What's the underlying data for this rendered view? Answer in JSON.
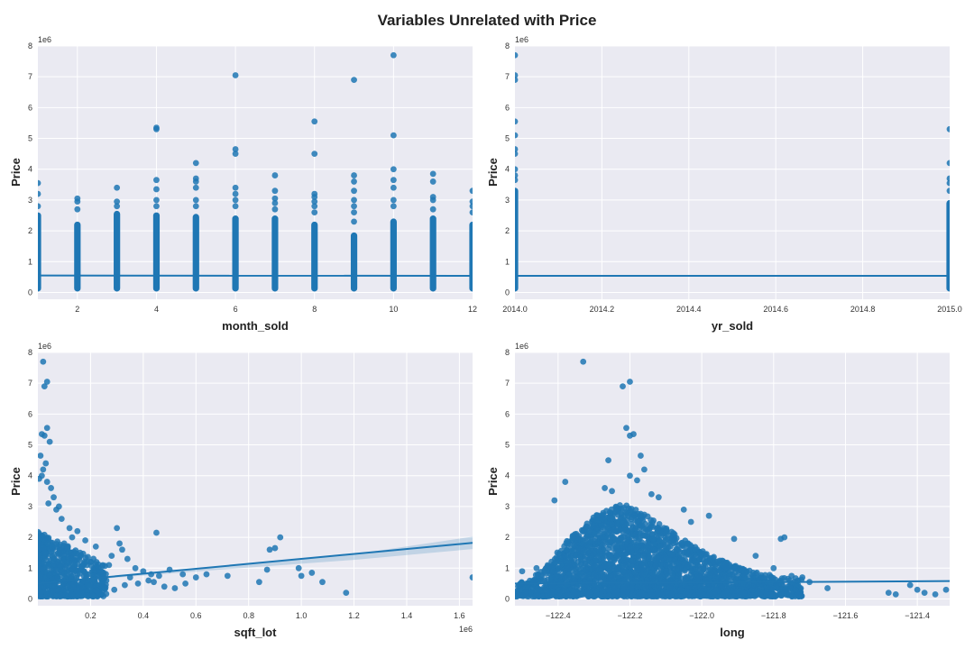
{
  "figure": {
    "title": "Variables Unrelated with Price"
  },
  "colors": {
    "point": "#1f77b4",
    "line": "#1f77b4",
    "panel_bg": "#eaeaf2",
    "grid": "#ffffff"
  },
  "chart_data": [
    {
      "type": "scatter",
      "xlabel": "month_sold",
      "ylabel": "Price",
      "y_offset_label": "1e6",
      "x_offset_label": "",
      "xlim": [
        1,
        12
      ],
      "ylim": [
        -0.22,
        8.0
      ],
      "xticks": [
        2,
        4,
        6,
        8,
        10,
        12
      ],
      "xtick_labels": [
        "2",
        "4",
        "6",
        "8",
        "10",
        "12"
      ],
      "yticks": [
        0,
        1,
        2,
        3,
        4,
        5,
        6,
        7,
        8
      ],
      "ytick_labels": [
        "0",
        "1",
        "2",
        "3",
        "4",
        "5",
        "6",
        "7",
        "8"
      ],
      "grid": true,
      "columns": [
        {
          "x": 1,
          "max": 2.6
        },
        {
          "x": 2,
          "max": 2.3
        },
        {
          "x": 3,
          "max": 2.65
        },
        {
          "x": 4,
          "max": 2.6
        },
        {
          "x": 5,
          "max": 2.55
        },
        {
          "x": 6,
          "max": 2.5
        },
        {
          "x": 7,
          "max": 2.5
        },
        {
          "x": 8,
          "max": 2.3
        },
        {
          "x": 9,
          "max": 1.95
        },
        {
          "x": 10,
          "max": 2.4
        },
        {
          "x": 11,
          "max": 2.5
        },
        {
          "x": 12,
          "max": 2.3
        }
      ],
      "outliers": [
        [
          1,
          3.55
        ],
        [
          1,
          3.2
        ],
        [
          1,
          2.8
        ],
        [
          2,
          3.05
        ],
        [
          2,
          2.95
        ],
        [
          2,
          2.7
        ],
        [
          3,
          3.4
        ],
        [
          3,
          2.95
        ],
        [
          3,
          2.8
        ],
        [
          4,
          5.3
        ],
        [
          4,
          5.35
        ],
        [
          4,
          3.65
        ],
        [
          4,
          3.35
        ],
        [
          4,
          3.0
        ],
        [
          4,
          2.8
        ],
        [
          5,
          4.2
        ],
        [
          5,
          3.7
        ],
        [
          5,
          3.6
        ],
        [
          5,
          3.4
        ],
        [
          5,
          3.0
        ],
        [
          5,
          2.8
        ],
        [
          6,
          7.05
        ],
        [
          6,
          4.65
        ],
        [
          6,
          4.5
        ],
        [
          6,
          3.4
        ],
        [
          6,
          3.2
        ],
        [
          6,
          3.0
        ],
        [
          6,
          2.8
        ],
        [
          7,
          3.8
        ],
        [
          7,
          3.3
        ],
        [
          7,
          3.05
        ],
        [
          7,
          2.9
        ],
        [
          7,
          2.7
        ],
        [
          8,
          5.55
        ],
        [
          8,
          4.5
        ],
        [
          8,
          3.2
        ],
        [
          8,
          3.1
        ],
        [
          8,
          2.95
        ],
        [
          8,
          2.8
        ],
        [
          8,
          2.6
        ],
        [
          9,
          6.9
        ],
        [
          9,
          3.8
        ],
        [
          9,
          3.6
        ],
        [
          9,
          3.3
        ],
        [
          9,
          3.0
        ],
        [
          9,
          2.8
        ],
        [
          9,
          2.6
        ],
        [
          9,
          2.3
        ],
        [
          10,
          7.7
        ],
        [
          10,
          5.1
        ],
        [
          10,
          4.0
        ],
        [
          10,
          3.65
        ],
        [
          10,
          3.4
        ],
        [
          10,
          3.0
        ],
        [
          10,
          2.8
        ],
        [
          11,
          3.85
        ],
        [
          11,
          3.6
        ],
        [
          11,
          3.1
        ],
        [
          11,
          3.0
        ],
        [
          11,
          2.7
        ],
        [
          12,
          3.3
        ],
        [
          12,
          2.95
        ],
        [
          12,
          2.8
        ],
        [
          12,
          2.6
        ]
      ],
      "regression": {
        "x": [
          1,
          12
        ],
        "y": [
          0.55,
          0.54
        ]
      }
    },
    {
      "type": "scatter",
      "xlabel": "yr_sold",
      "ylabel": "Price",
      "y_offset_label": "1e6",
      "x_offset_label": "",
      "xlim": [
        2014.0,
        2015.0
      ],
      "ylim": [
        -0.22,
        8.0
      ],
      "xticks": [
        2014.0,
        2014.2,
        2014.4,
        2014.6,
        2014.8,
        2015.0
      ],
      "xtick_labels": [
        "2014.0",
        "2014.2",
        "2014.4",
        "2014.6",
        "2014.8",
        "2015.0"
      ],
      "yticks": [
        0,
        1,
        2,
        3,
        4,
        5,
        6,
        7,
        8
      ],
      "ytick_labels": [
        "0",
        "1",
        "2",
        "3",
        "4",
        "5",
        "6",
        "7",
        "8"
      ],
      "grid": true,
      "columns": [
        {
          "x": 2014.0,
          "max": 3.4
        },
        {
          "x": 2015.0,
          "max": 3.0
        }
      ],
      "outliers": [
        [
          2014.0,
          7.7
        ],
        [
          2014.0,
          7.05
        ],
        [
          2014.0,
          6.9
        ],
        [
          2014.0,
          5.55
        ],
        [
          2014.0,
          5.1
        ],
        [
          2014.0,
          4.65
        ],
        [
          2014.0,
          4.5
        ],
        [
          2014.0,
          4.0
        ],
        [
          2014.0,
          3.8
        ],
        [
          2014.0,
          3.65
        ],
        [
          2015.0,
          5.3
        ],
        [
          2015.0,
          4.2
        ],
        [
          2015.0,
          3.7
        ],
        [
          2015.0,
          3.55
        ],
        [
          2015.0,
          3.3
        ]
      ],
      "regression": {
        "x": [
          2014.0,
          2015.0
        ],
        "y": [
          0.54,
          0.54
        ]
      }
    },
    {
      "type": "scatter",
      "xlabel": "sqft_lot",
      "ylabel": "Price",
      "y_offset_label": "1e6",
      "x_offset_label": "1e6",
      "xlim": [
        0.0,
        1.65
      ],
      "ylim": [
        -0.22,
        8.0
      ],
      "xticks": [
        0.2,
        0.4,
        0.6,
        0.8,
        1.0,
        1.2,
        1.4,
        1.6
      ],
      "xtick_labels": [
        "0.2",
        "0.4",
        "0.6",
        "0.8",
        "1.0",
        "1.2",
        "1.4",
        "1.6"
      ],
      "yticks": [
        0,
        1,
        2,
        3,
        4,
        5,
        6,
        7,
        8
      ],
      "ytick_labels": [
        "0",
        "1",
        "2",
        "3",
        "4",
        "5",
        "6",
        "7",
        "8"
      ],
      "grid": true,
      "dense_region": {
        "x": [
          0.0,
          0.26
        ],
        "y": [
          0.08,
          2.2
        ]
      },
      "points": [
        [
          0.02,
          7.7
        ],
        [
          0.035,
          7.05
        ],
        [
          0.025,
          6.9
        ],
        [
          0.035,
          5.55
        ],
        [
          0.015,
          5.35
        ],
        [
          0.025,
          5.3
        ],
        [
          0.045,
          5.1
        ],
        [
          0.01,
          4.65
        ],
        [
          0.03,
          4.4
        ],
        [
          0.02,
          4.2
        ],
        [
          0.015,
          4.0
        ],
        [
          0.035,
          3.8
        ],
        [
          0.005,
          3.9
        ],
        [
          0.05,
          3.6
        ],
        [
          0.06,
          3.3
        ],
        [
          0.04,
          3.1
        ],
        [
          0.08,
          3.0
        ],
        [
          0.07,
          2.9
        ],
        [
          0.09,
          2.6
        ],
        [
          0.12,
          2.3
        ],
        [
          0.3,
          2.3
        ],
        [
          0.45,
          2.15
        ],
        [
          0.15,
          2.2
        ],
        [
          0.18,
          1.9
        ],
        [
          0.22,
          1.7
        ],
        [
          0.31,
          1.8
        ],
        [
          0.32,
          1.6
        ],
        [
          0.28,
          1.4
        ],
        [
          0.34,
          1.3
        ],
        [
          0.37,
          1.0
        ],
        [
          0.4,
          0.9
        ],
        [
          0.43,
          0.8
        ],
        [
          0.46,
          0.75
        ],
        [
          0.5,
          0.95
        ],
        [
          0.55,
          0.8
        ],
        [
          0.42,
          0.6
        ],
        [
          0.48,
          0.4
        ],
        [
          0.52,
          0.35
        ],
        [
          0.56,
          0.5
        ],
        [
          0.6,
          0.7
        ],
        [
          0.64,
          0.8
        ],
        [
          0.72,
          0.75
        ],
        [
          0.38,
          0.5
        ],
        [
          0.33,
          0.45
        ],
        [
          0.29,
          0.3
        ],
        [
          0.88,
          1.6
        ],
        [
          0.9,
          1.65
        ],
        [
          0.92,
          2.0
        ],
        [
          0.87,
          0.95
        ],
        [
          0.84,
          0.55
        ],
        [
          0.99,
          1.0
        ],
        [
          1.0,
          0.75
        ],
        [
          1.04,
          0.85
        ],
        [
          1.08,
          0.55
        ],
        [
          1.17,
          0.2
        ],
        [
          1.65,
          0.7
        ],
        [
          0.27,
          1.1
        ],
        [
          0.24,
          0.9
        ],
        [
          0.2,
          1.2
        ],
        [
          0.16,
          1.5
        ],
        [
          0.1,
          1.8
        ],
        [
          0.13,
          2.0
        ],
        [
          0.26,
          0.6
        ],
        [
          0.35,
          0.7
        ],
        [
          0.44,
          0.55
        ]
      ],
      "regression": {
        "x": [
          0.0,
          1.65
        ],
        "y": [
          0.5,
          1.82
        ]
      },
      "ci": {
        "x": [
          0.0,
          0.4,
          0.8,
          1.2,
          1.65
        ],
        "lower": [
          0.49,
          0.76,
          1.02,
          1.27,
          1.62
        ],
        "upper": [
          0.51,
          0.84,
          1.12,
          1.45,
          2.02
        ]
      }
    },
    {
      "type": "scatter",
      "xlabel": "long",
      "ylabel": "Price",
      "y_offset_label": "1e6",
      "x_offset_label": "",
      "xlim": [
        -122.52,
        -121.31
      ],
      "ylim": [
        -0.22,
        8.0
      ],
      "xticks": [
        -122.4,
        -122.2,
        -122.0,
        -121.8,
        -121.6,
        -121.4
      ],
      "xtick_labels": [
        "−122.4",
        "−122.2",
        "−122.0",
        "−121.8",
        "−121.6",
        "−121.4"
      ],
      "yticks": [
        0,
        1,
        2,
        3,
        4,
        5,
        6,
        7,
        8
      ],
      "ytick_labels": [
        "0",
        "1",
        "2",
        "3",
        "4",
        "5",
        "6",
        "7",
        "8"
      ],
      "grid": true,
      "density_profile": [
        [
          -122.52,
          0.55
        ],
        [
          -122.47,
          0.7
        ],
        [
          -122.42,
          1.2
        ],
        [
          -122.38,
          1.9
        ],
        [
          -122.34,
          2.2
        ],
        [
          -122.3,
          2.7
        ],
        [
          -122.26,
          2.9
        ],
        [
          -122.22,
          3.1
        ],
        [
          -122.18,
          2.9
        ],
        [
          -122.14,
          2.6
        ],
        [
          -122.1,
          2.3
        ],
        [
          -122.06,
          2.0
        ],
        [
          -122.02,
          1.7
        ],
        [
          -121.98,
          1.45
        ],
        [
          -121.94,
          1.25
        ],
        [
          -121.9,
          1.05
        ],
        [
          -121.86,
          0.9
        ],
        [
          -121.82,
          0.8
        ],
        [
          -121.78,
          0.75
        ],
        [
          -121.72,
          0.65
        ]
      ],
      "points": [
        [
          -122.33,
          7.7
        ],
        [
          -122.2,
          7.05
        ],
        [
          -122.22,
          6.9
        ],
        [
          -122.21,
          5.55
        ],
        [
          -122.19,
          5.35
        ],
        [
          -122.2,
          5.3
        ],
        [
          -122.17,
          4.65
        ],
        [
          -122.26,
          4.5
        ],
        [
          -122.16,
          4.2
        ],
        [
          -122.2,
          4.0
        ],
        [
          -122.18,
          3.85
        ],
        [
          -122.38,
          3.8
        ],
        [
          -122.27,
          3.6
        ],
        [
          -122.25,
          3.5
        ],
        [
          -122.14,
          3.4
        ],
        [
          -122.12,
          3.3
        ],
        [
          -122.41,
          3.2
        ],
        [
          -122.05,
          2.9
        ],
        [
          -121.98,
          2.7
        ],
        [
          -122.03,
          2.5
        ],
        [
          -121.91,
          1.95
        ],
        [
          -121.77,
          2.0
        ],
        [
          -121.78,
          1.95
        ],
        [
          -121.85,
          1.4
        ],
        [
          -121.8,
          1.0
        ],
        [
          -121.75,
          0.75
        ],
        [
          -121.72,
          0.7
        ],
        [
          -121.7,
          0.55
        ],
        [
          -121.65,
          0.35
        ],
        [
          -121.48,
          0.2
        ],
        [
          -121.46,
          0.15
        ],
        [
          -121.42,
          0.45
        ],
        [
          -121.4,
          0.3
        ],
        [
          -121.38,
          0.2
        ],
        [
          -121.35,
          0.15
        ],
        [
          -121.32,
          0.3
        ],
        [
          -122.5,
          0.9
        ],
        [
          -122.49,
          0.4
        ],
        [
          -122.46,
          1.0
        ],
        [
          -121.95,
          0.9
        ],
        [
          -121.88,
          0.7
        ],
        [
          -121.84,
          0.55
        ],
        [
          -121.76,
          0.4
        ],
        [
          -121.74,
          0.3
        ]
      ],
      "regression": {
        "x": [
          -122.52,
          -121.31
        ],
        "y": [
          0.5,
          0.58
        ]
      }
    }
  ]
}
